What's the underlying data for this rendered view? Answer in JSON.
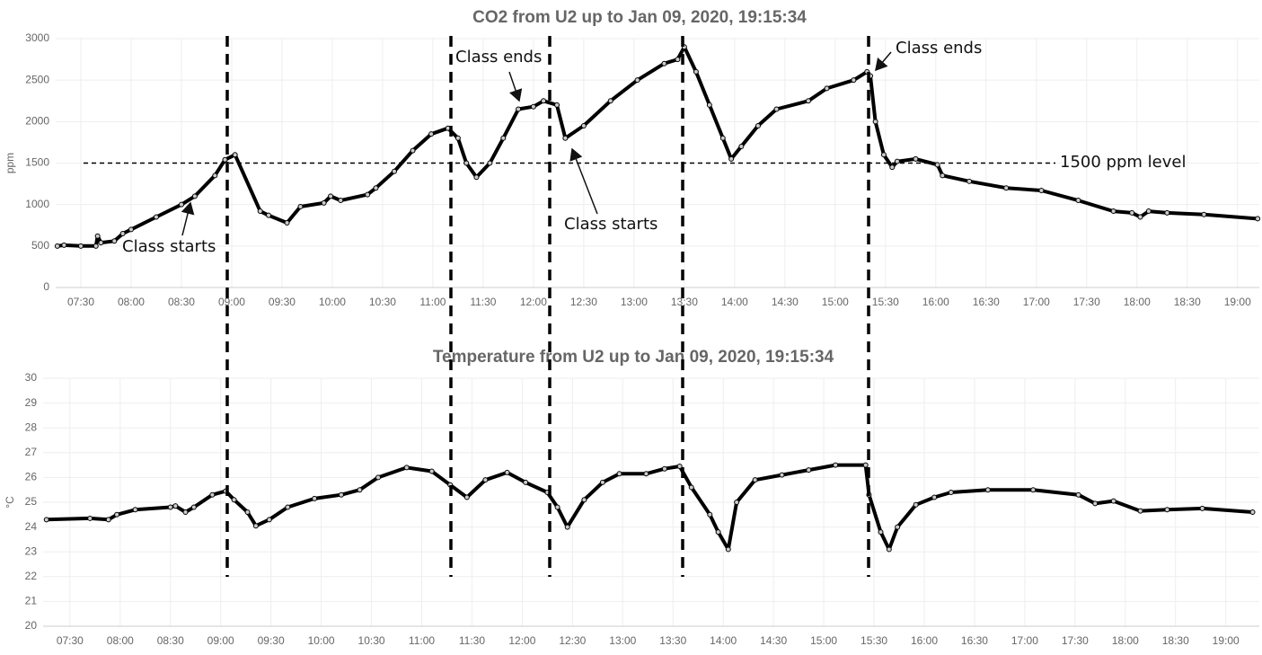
{
  "chart_data": [
    {
      "type": "line",
      "title": "CO2 from U2 up to Jan 09, 2020, 19:15:34",
      "y_label": "ppm",
      "xlim": [
        "07:15",
        "19:13"
      ],
      "ylim": [
        0,
        3000
      ],
      "yticks": [
        0,
        500,
        1000,
        1500,
        2000,
        2500,
        3000
      ],
      "xticks": [
        "07:30",
        "08:00",
        "08:30",
        "09:00",
        "09:30",
        "10:00",
        "10:30",
        "11:00",
        "11:30",
        "12:00",
        "12:30",
        "13:00",
        "13:30",
        "14:00",
        "14:30",
        "15:00",
        "15:30",
        "16:00",
        "16:30",
        "17:00",
        "17:30",
        "18:00",
        "18:30",
        "19:00"
      ],
      "grid": true,
      "reference_line": 1500,
      "annotations": [
        "Class starts",
        "Class ends",
        "Class starts",
        "Class ends",
        "1500 ppm level"
      ],
      "series": [
        {
          "color": "#000000",
          "x": [
            "07:16",
            "07:20",
            "07:30",
            "07:39",
            "07:40",
            "07:42",
            "07:50",
            "07:55",
            "08:00",
            "08:15",
            "08:30",
            "08:38",
            "08:50",
            "08:56",
            "09:02",
            "09:17",
            "09:22",
            "09:33",
            "09:41",
            "09:55",
            "09:59",
            "10:05",
            "10:21",
            "10:26",
            "10:37",
            "10:48",
            "10:59",
            "11:09",
            "11:15",
            "11:20",
            "11:26",
            "11:34",
            "11:42",
            "11:51",
            "12:00",
            "12:06",
            "12:14",
            "12:19",
            "12:30",
            "12:46",
            "13:02",
            "13:18",
            "13:26",
            "13:30",
            "13:37",
            "13:45",
            "13:53",
            "13:58",
            "14:04",
            "14:14",
            "14:25",
            "14:44",
            "14:55",
            "15:11",
            "15:19",
            "15:21",
            "15:24",
            "15:29",
            "15:34",
            "15:37",
            "15:48",
            "16:01",
            "16:04",
            "16:20",
            "16:42",
            "17:03",
            "17:25",
            "17:46",
            "17:57",
            "18:02",
            "18:07",
            "18:18",
            "18:40",
            "19:12"
          ],
          "values": [
            500,
            510,
            500,
            500,
            620,
            540,
            560,
            650,
            700,
            850,
            1000,
            1100,
            1350,
            1540,
            1600,
            920,
            870,
            780,
            975,
            1020,
            1100,
            1050,
            1120,
            1200,
            1400,
            1650,
            1850,
            1920,
            1800,
            1500,
            1330,
            1500,
            1800,
            2150,
            2180,
            2250,
            2200,
            1800,
            1950,
            2250,
            2500,
            2700,
            2750,
            2900,
            2600,
            2200,
            1800,
            1550,
            1700,
            1950,
            2150,
            2250,
            2400,
            2500,
            2600,
            2550,
            2000,
            1600,
            1450,
            1520,
            1550,
            1480,
            1350,
            1280,
            1200,
            1170,
            1050,
            920,
            900,
            850,
            920,
            900,
            880,
            830
          ]
        }
      ]
    },
    {
      "type": "line",
      "title": "Temperature from U2 up to Jan 09, 2020, 19:15:34",
      "y_label": "°C",
      "xlim": [
        "07:14",
        "19:20"
      ],
      "ylim": [
        20,
        30
      ],
      "yticks": [
        20,
        21,
        22,
        23,
        24,
        25,
        26,
        27,
        28,
        29,
        30
      ],
      "xticks": [
        "07:30",
        "08:00",
        "08:30",
        "09:00",
        "09:30",
        "10:00",
        "10:30",
        "11:00",
        "11:30",
        "12:00",
        "12:30",
        "13:00",
        "13:30",
        "14:00",
        "14:30",
        "15:00",
        "15:30",
        "16:00",
        "16:30",
        "17:00",
        "17:30",
        "18:00",
        "18:30",
        "19:00"
      ],
      "grid": true,
      "series": [
        {
          "color": "#000000",
          "x": [
            "07:16",
            "07:42",
            "07:53",
            "07:58",
            "08:09",
            "08:30",
            "08:33",
            "08:39",
            "08:44",
            "08:55",
            "09:03",
            "09:08",
            "09:16",
            "09:21",
            "09:29",
            "09:40",
            "09:56",
            "10:12",
            "10:23",
            "10:34",
            "10:51",
            "11:06",
            "11:17",
            "11:27",
            "11:38",
            "11:51",
            "12:02",
            "12:15",
            "12:21",
            "12:27",
            "12:37",
            "12:48",
            "12:58",
            "13:14",
            "13:25",
            "13:34",
            "13:41",
            "13:52",
            "13:57",
            "14:03",
            "14:08",
            "14:19",
            "14:35",
            "14:51",
            "15:07",
            "15:25",
            "15:27",
            "15:34",
            "15:39",
            "15:44",
            "15:55",
            "16:06",
            "16:16",
            "16:38",
            "17:05",
            "17:32",
            "17:42",
            "17:53",
            "18:09",
            "18:25",
            "18:46",
            "19:16"
          ],
          "values": [
            24.3,
            24.35,
            24.3,
            24.5,
            24.7,
            24.8,
            24.85,
            24.6,
            24.8,
            25.3,
            25.45,
            25.1,
            24.6,
            24.05,
            24.3,
            24.8,
            25.15,
            25.3,
            25.5,
            26,
            26.4,
            26.25,
            25.7,
            25.2,
            25.9,
            26.2,
            25.8,
            25.4,
            24.8,
            24,
            25.1,
            25.8,
            26.15,
            26.15,
            26.35,
            26.45,
            25.6,
            24.5,
            23.8,
            23.1,
            25,
            25.9,
            26.1,
            26.3,
            26.5,
            26.5,
            25.3,
            23.8,
            23.1,
            24,
            24.9,
            25.2,
            25.4,
            25.5,
            25.5,
            25.3,
            24.95,
            25.05,
            24.65,
            24.7,
            24.75,
            24.6
          ]
        }
      ]
    }
  ]
}
